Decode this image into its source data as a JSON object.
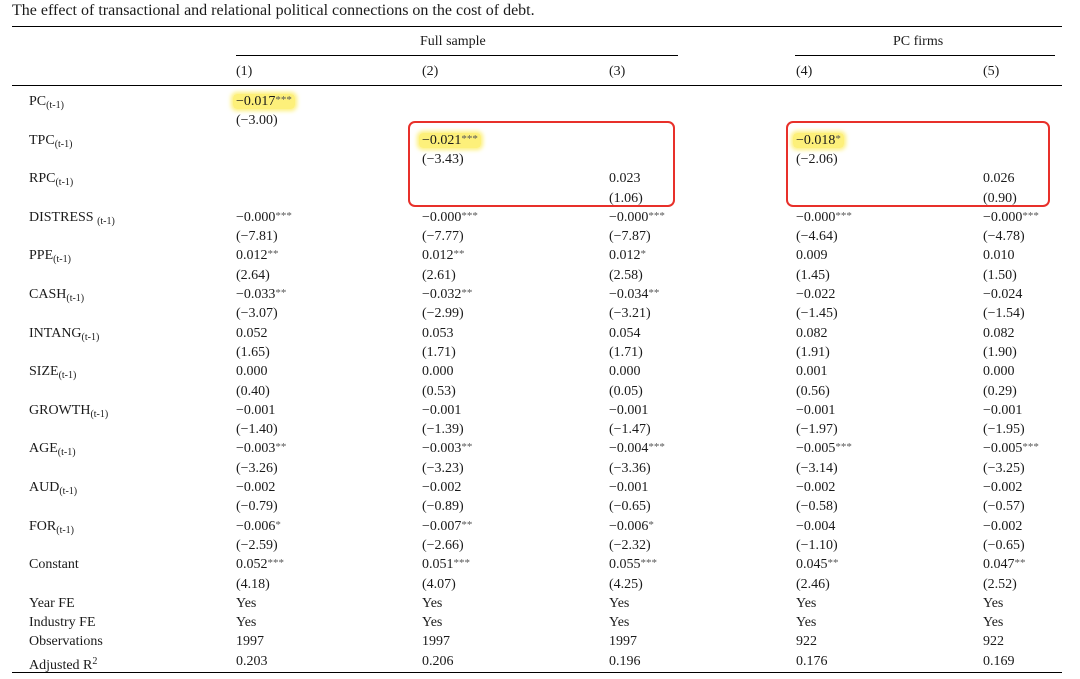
{
  "caption": "The effect of transactional and relational political connections on the cost of debt.",
  "groups": {
    "full": "Full sample",
    "pc": "PC firms"
  },
  "columns": [
    "(1)",
    "(2)",
    "(3)",
    "(4)",
    "(5)"
  ],
  "rows": [
    {
      "name": "PC",
      "sub": "(t-1)",
      "cells": [
        {
          "v": "−0.017",
          "s": "***",
          "hl": true,
          "t": "(−3.00)"
        },
        null,
        null,
        null,
        null
      ]
    },
    {
      "name": "TPC",
      "sub": "(t-1)",
      "cells": [
        null,
        {
          "v": "−0.021",
          "s": "***",
          "hl": true,
          "t": "(−3.43)"
        },
        null,
        {
          "v": "−0.018",
          "s": "*",
          "hl": true,
          "t": "(−2.06)"
        },
        null
      ]
    },
    {
      "name": "RPC",
      "sub": "(t-1)",
      "cells": [
        null,
        null,
        {
          "v": "0.023",
          "s": "",
          "t": "(1.06)"
        },
        null,
        {
          "v": "0.026",
          "s": "",
          "t": "(0.90)"
        }
      ]
    },
    {
      "name": "DISTRESS ",
      "sub": "(t-1)",
      "cells": [
        {
          "v": "−0.000",
          "s": "***",
          "t": "(−7.81)"
        },
        {
          "v": "−0.000",
          "s": "***",
          "t": "(−7.77)"
        },
        {
          "v": "−0.000",
          "s": "***",
          "t": "(−7.87)"
        },
        {
          "v": "−0.000",
          "s": "***",
          "t": "(−4.64)"
        },
        {
          "v": "−0.000",
          "s": "***",
          "t": "(−4.78)"
        }
      ]
    },
    {
      "name": "PPE",
      "sub": "(t-1)",
      "cells": [
        {
          "v": "0.012",
          "s": "**",
          "t": "(2.64)"
        },
        {
          "v": "0.012",
          "s": "**",
          "t": "(2.61)"
        },
        {
          "v": "0.012",
          "s": "*",
          "t": "(2.58)"
        },
        {
          "v": "0.009",
          "s": "",
          "t": "(1.45)"
        },
        {
          "v": "0.010",
          "s": "",
          "t": "(1.50)"
        }
      ]
    },
    {
      "name": "CASH",
      "sub": "(t-1)",
      "cells": [
        {
          "v": "−0.033",
          "s": "**",
          "t": "(−3.07)"
        },
        {
          "v": "−0.032",
          "s": "**",
          "t": "(−2.99)"
        },
        {
          "v": "−0.034",
          "s": "**",
          "t": "(−3.21)"
        },
        {
          "v": "−0.022",
          "s": "",
          "t": "(−1.45)"
        },
        {
          "v": "−0.024",
          "s": "",
          "t": "(−1.54)"
        }
      ]
    },
    {
      "name": "INTANG",
      "sub": "(t-1)",
      "cells": [
        {
          "v": "0.052",
          "s": "",
          "t": "(1.65)"
        },
        {
          "v": "0.053",
          "s": "",
          "t": "(1.71)"
        },
        {
          "v": "0.054",
          "s": "",
          "t": "(1.71)"
        },
        {
          "v": "0.082",
          "s": "",
          "t": "(1.91)"
        },
        {
          "v": "0.082",
          "s": "",
          "t": "(1.90)"
        }
      ]
    },
    {
      "name": "SIZE",
      "sub": "(t-1)",
      "cells": [
        {
          "v": "0.000",
          "s": "",
          "t": "(0.40)"
        },
        {
          "v": "0.000",
          "s": "",
          "t": "(0.53)"
        },
        {
          "v": "0.000",
          "s": "",
          "t": "(0.05)"
        },
        {
          "v": "0.001",
          "s": "",
          "t": "(0.56)"
        },
        {
          "v": "0.000",
          "s": "",
          "t": "(0.29)"
        }
      ]
    },
    {
      "name": "GROWTH",
      "sub": "(t-1)",
      "cells": [
        {
          "v": "−0.001",
          "s": "",
          "t": "(−1.40)"
        },
        {
          "v": "−0.001",
          "s": "",
          "t": "(−1.39)"
        },
        {
          "v": "−0.001",
          "s": "",
          "t": "(−1.47)"
        },
        {
          "v": "−0.001",
          "s": "",
          "t": "(−1.97)"
        },
        {
          "v": "−0.001",
          "s": "",
          "t": "(−1.95)"
        }
      ]
    },
    {
      "name": "AGE",
      "sub": "(t-1)",
      "cells": [
        {
          "v": "−0.003",
          "s": "**",
          "t": "(−3.26)"
        },
        {
          "v": "−0.003",
          "s": "**",
          "t": "(−3.23)"
        },
        {
          "v": "−0.004",
          "s": "***",
          "t": "(−3.36)"
        },
        {
          "v": "−0.005",
          "s": "***",
          "t": "(−3.14)"
        },
        {
          "v": "−0.005",
          "s": "***",
          "t": "(−3.25)"
        }
      ]
    },
    {
      "name": "AUD",
      "sub": "(t-1)",
      "cells": [
        {
          "v": "−0.002",
          "s": "",
          "t": "(−0.79)"
        },
        {
          "v": "−0.002",
          "s": "",
          "t": "(−0.89)"
        },
        {
          "v": "−0.001",
          "s": "",
          "t": "(−0.65)"
        },
        {
          "v": "−0.002",
          "s": "",
          "t": "(−0.58)"
        },
        {
          "v": "−0.002",
          "s": "",
          "t": "(−0.57)"
        }
      ]
    },
    {
      "name": "FOR",
      "sub": "(t-1)",
      "cells": [
        {
          "v": "−0.006",
          "s": "*",
          "t": "(−2.59)"
        },
        {
          "v": "−0.007",
          "s": "**",
          "t": "(−2.66)"
        },
        {
          "v": "−0.006",
          "s": "*",
          "t": "(−2.32)"
        },
        {
          "v": "−0.004",
          "s": "",
          "t": "(−1.10)"
        },
        {
          "v": "−0.002",
          "s": "",
          "t": "(−0.65)"
        }
      ]
    },
    {
      "name": "Constant",
      "sub": "",
      "cells": [
        {
          "v": "0.052",
          "s": "***",
          "t": "(4.18)"
        },
        {
          "v": "0.051",
          "s": "***",
          "t": "(4.07)"
        },
        {
          "v": "0.055",
          "s": "***",
          "t": "(4.25)"
        },
        {
          "v": "0.045",
          "s": "**",
          "t": "(2.46)"
        },
        {
          "v": "0.047",
          "s": "**",
          "t": "(2.52)"
        }
      ]
    }
  ],
  "footer": [
    {
      "name": "Year FE",
      "values": [
        "Yes",
        "Yes",
        "Yes",
        "Yes",
        "Yes"
      ]
    },
    {
      "name": "Industry FE",
      "values": [
        "Yes",
        "Yes",
        "Yes",
        "Yes",
        "Yes"
      ]
    },
    {
      "name": "Observations",
      "values": [
        "1997",
        "1997",
        "1997",
        "922",
        "922"
      ]
    },
    {
      "name": "Adjusted R",
      "sup": "2",
      "values": [
        "0.203",
        "0.206",
        "0.196",
        "0.176",
        "0.169"
      ]
    }
  ]
}
